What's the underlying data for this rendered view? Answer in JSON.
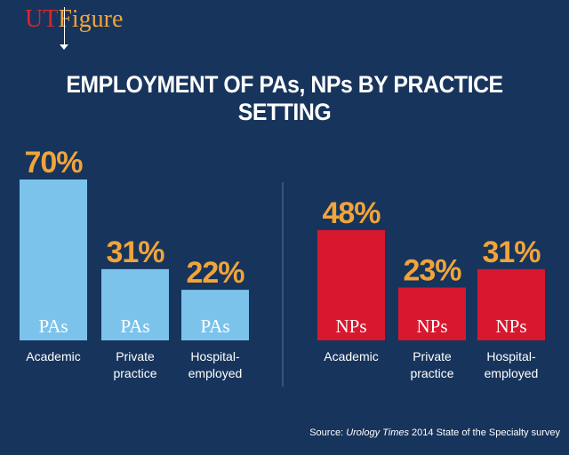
{
  "header": {
    "logo_ut": "UT",
    "logo_figure": "Figure",
    "title": "EMPLOYMENT OF PAs, NPs BY PRACTICE SETTING"
  },
  "source": {
    "prefix": "Source: ",
    "publication": "Urology Times",
    "suffix": " 2014 State of the Specialty survey"
  },
  "colors": {
    "background": "#17345c",
    "pa_bar": "#7cc3ec",
    "np_bar": "#d8182f",
    "value_label": "#f0a43a",
    "text": "#ffffff"
  },
  "chart_data": [
    {
      "type": "bar",
      "series_name": "PAs",
      "categories": [
        "Academic",
        "Private practice",
        "Hospital-employed"
      ],
      "category_lines": [
        [
          "Academic"
        ],
        [
          "Private",
          "practice"
        ],
        [
          "Hospital-",
          "employed"
        ]
      ],
      "values": [
        70,
        31,
        22
      ],
      "value_labels": [
        "70%",
        "31%",
        "22%"
      ],
      "bar_label": "PAs",
      "unit": "%"
    },
    {
      "type": "bar",
      "series_name": "NPs",
      "categories": [
        "Academic",
        "Private practice",
        "Hospital-employed"
      ],
      "category_lines": [
        [
          "Academic"
        ],
        [
          "Private",
          "practice"
        ],
        [
          "Hospital-",
          "employed"
        ]
      ],
      "values": [
        48,
        23,
        31
      ],
      "value_labels": [
        "48%",
        "23%",
        "31%"
      ],
      "bar_label": "NPs",
      "unit": "%"
    }
  ]
}
